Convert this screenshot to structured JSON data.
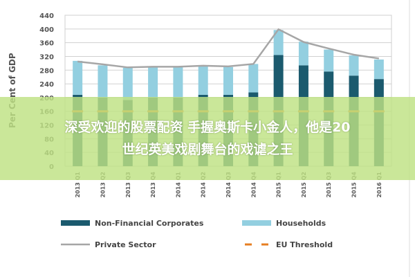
{
  "chart_data": {
    "type": "bar",
    "stacked": true,
    "title": "",
    "ylabel": "Per Cent of GDP",
    "xlabel": "",
    "ylim": [
      0,
      440
    ],
    "yticks": [
      0,
      40,
      80,
      120,
      160,
      200,
      240,
      280,
      320,
      360,
      400,
      440
    ],
    "grid": true,
    "legend_position": "bottom",
    "categories": [
      "2013 Q1",
      "2013 Q2",
      "2013 Q3",
      "2013 Q4",
      "2014 Q1",
      "2014 Q2",
      "2014 Q3",
      "2014 Q4",
      "2015 Q1",
      "2015 Q2",
      "2015 Q3",
      "2015 Q4",
      "2016 Q1"
    ],
    "series": [
      {
        "name": "Non-Financial Corporates",
        "type": "bar",
        "color": "#1b5a6e",
        "values": [
          208,
          200,
          193,
          200,
          200,
          208,
          208,
          215,
          324,
          294,
          276,
          264,
          254
        ]
      },
      {
        "name": "Households",
        "type": "bar",
        "color": "#93cfe0",
        "values": [
          99,
          94,
          94,
          89,
          89,
          83,
          81,
          83,
          73,
          69,
          64,
          59,
          57
        ]
      },
      {
        "name": "Private Sector",
        "type": "line",
        "color": "#a6a6a6",
        "values": [
          305,
          297,
          288,
          290,
          290,
          293,
          291,
          298,
          399,
          362,
          343,
          325,
          314
        ]
      },
      {
        "name": "EU Threshold",
        "type": "line",
        "dashed": true,
        "color": "#e67e22",
        "values": [
          160,
          160,
          160,
          160,
          160,
          160,
          160,
          160,
          160,
          160,
          160,
          160,
          160
        ]
      }
    ]
  },
  "overlay": {
    "line1": "深受欢迎的股票配资 手握奥斯卡小金人，他是20",
    "line2": "世纪英美戏剧舞台的戏谑之王",
    "color": "#bee282"
  }
}
